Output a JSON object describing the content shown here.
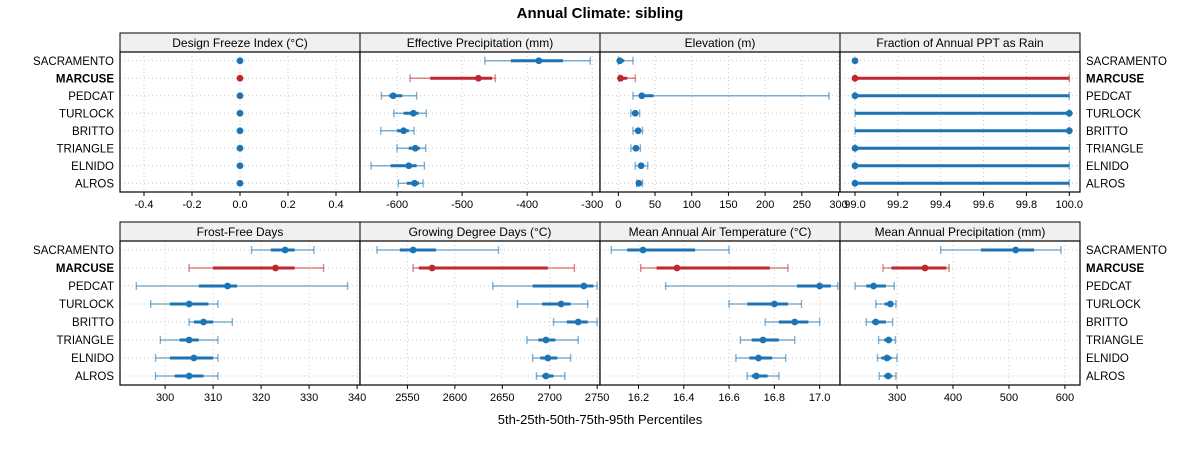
{
  "title": "Annual Climate: sibling",
  "footer": "5th-25th-50th-75th-95th Percentiles",
  "colors": {
    "series": "#1c74b4",
    "highlight": "#c0272d",
    "header_bg": "#f0f0f0",
    "grid": "#c9c9c9",
    "border": "#000000"
  },
  "chart_data": {
    "type": "dotplot",
    "subtype": "percentile-errorbars",
    "percentile_labels": [
      "5th",
      "25th",
      "50th",
      "75th",
      "95th"
    ],
    "stations": [
      "SACRAMENTO",
      "MARCUSE",
      "PEDCAT",
      "TURLOCK",
      "BRITTO",
      "TRIANGLE",
      "ELNIDO",
      "ALROS"
    ],
    "highlight_station": "MARCUSE",
    "legend_position": "none",
    "grid": "dotted",
    "panels": [
      {
        "title": "Design Freeze Index (°C)",
        "row": 0,
        "col": 0,
        "xlim": [
          -0.5,
          0.5
        ],
        "ticks": [
          -0.4,
          -0.2,
          0.0,
          0.2,
          0.4
        ],
        "tick_labels": [
          "-0.4",
          "-0.2",
          "0.0",
          "0.2",
          "0.4"
        ],
        "values": [
          [
            0,
            0,
            0,
            0,
            0
          ],
          [
            0,
            0,
            0,
            0,
            0
          ],
          [
            0,
            0,
            0,
            0,
            0
          ],
          [
            0,
            0,
            0,
            0,
            0
          ],
          [
            0,
            0,
            0,
            0,
            0
          ],
          [
            0,
            0,
            0,
            0,
            0
          ],
          [
            0,
            0,
            0,
            0,
            0
          ],
          [
            0,
            0,
            0,
            0,
            0
          ]
        ]
      },
      {
        "title": "Effective Precipitation (mm)",
        "row": 0,
        "col": 1,
        "xlim": [
          -657,
          -288
        ],
        "ticks": [
          -600,
          -500,
          -400,
          -300
        ],
        "tick_labels": [
          "-600",
          "-500",
          "-400",
          "-300"
        ],
        "values": [
          [
            -465,
            -425,
            -382,
            -345,
            -303
          ],
          [
            -580,
            -549,
            -475,
            -454,
            -449
          ],
          [
            -624,
            -612,
            -606,
            -592,
            -570
          ],
          [
            -605,
            -590,
            -575,
            -567,
            -555
          ],
          [
            -625,
            -600,
            -590,
            -582,
            -574
          ],
          [
            -600,
            -582,
            -572,
            -565,
            -556
          ],
          [
            -640,
            -610,
            -582,
            -570,
            -558
          ],
          [
            -598,
            -585,
            -573,
            -566,
            -560
          ]
        ]
      },
      {
        "title": "Elevation (m)",
        "row": 0,
        "col": 2,
        "xlim": [
          -25,
          302
        ],
        "ticks": [
          0,
          50,
          100,
          150,
          200,
          250,
          300
        ],
        "tick_labels": [
          "0",
          "50",
          "100",
          "150",
          "200",
          "250",
          "300"
        ],
        "values": [
          [
            0,
            1,
            2,
            8,
            20
          ],
          [
            1,
            2,
            3,
            12,
            23
          ],
          [
            20,
            28,
            32,
            48,
            287
          ],
          [
            17,
            21,
            23,
            26,
            29
          ],
          [
            20,
            25,
            27,
            30,
            33
          ],
          [
            17,
            21,
            24,
            27,
            30
          ],
          [
            23,
            28,
            31,
            34,
            40
          ],
          [
            25,
            27,
            28,
            30,
            33
          ]
        ]
      },
      {
        "title": "Fraction of Annual PPT as Rain",
        "row": 0,
        "col": 3,
        "xlim": [
          98.93,
          100.05
        ],
        "ticks": [
          99.0,
          99.2,
          99.4,
          99.6,
          99.8,
          100.0
        ],
        "tick_labels": [
          "99.0",
          "99.2",
          "99.4",
          "99.6",
          "99.8",
          "100.0"
        ],
        "values": [
          [
            99.0,
            99.0,
            99.0,
            99.0,
            99.0
          ],
          [
            99.0,
            99.0,
            99.0,
            100.0,
            100.0
          ],
          [
            99.0,
            99.0,
            99.0,
            100.0,
            100.0
          ],
          [
            99.0,
            99.0,
            100.0,
            100.0,
            100.0
          ],
          [
            99.0,
            99.0,
            100.0,
            100.0,
            100.0
          ],
          [
            99.0,
            99.0,
            99.0,
            100.0,
            100.0
          ],
          [
            99.0,
            99.0,
            99.0,
            100.0,
            100.0
          ],
          [
            99.0,
            99.0,
            99.0,
            100.0,
            100.0
          ]
        ]
      },
      {
        "title": "Frost-Free Days",
        "row": 1,
        "col": 0,
        "xlim": [
          290.6,
          340.6
        ],
        "ticks": [
          300,
          310,
          320,
          330,
          340
        ],
        "tick_labels": [
          "300",
          "310",
          "320",
          "330",
          "340"
        ],
        "values": [
          [
            318,
            322,
            325,
            327,
            331
          ],
          [
            305,
            310,
            323,
            327,
            333
          ],
          [
            294,
            307,
            313,
            315,
            338
          ],
          [
            297,
            301,
            305,
            309,
            311
          ],
          [
            305,
            306,
            308,
            310,
            314
          ],
          [
            299,
            303,
            305,
            307,
            311
          ],
          [
            298,
            301,
            306,
            310,
            311
          ],
          [
            298,
            302,
            305,
            308,
            311
          ]
        ]
      },
      {
        "title": "Growing Degree Days (°C)",
        "row": 1,
        "col": 1,
        "xlim": [
          2500,
          2753
        ],
        "ticks": [
          2550,
          2600,
          2650,
          2700,
          2750
        ],
        "tick_labels": [
          "2550",
          "2600",
          "2650",
          "2700",
          "2750"
        ],
        "values": [
          [
            2518,
            2542,
            2556,
            2580,
            2646
          ],
          [
            2556,
            2562,
            2576,
            2698,
            2726
          ],
          [
            2640,
            2682,
            2736,
            2746,
            2750
          ],
          [
            2666,
            2692,
            2712,
            2722,
            2740
          ],
          [
            2704,
            2718,
            2730,
            2740,
            2750
          ],
          [
            2676,
            2688,
            2696,
            2706,
            2730
          ],
          [
            2682,
            2690,
            2698,
            2708,
            2722
          ],
          [
            2686,
            2692,
            2696,
            2704,
            2716
          ]
        ]
      },
      {
        "title": "Mean Annual Air Temperature (°C)",
        "row": 1,
        "col": 2,
        "xlim": [
          16.03,
          17.09
        ],
        "ticks": [
          16.2,
          16.4,
          16.6,
          16.8,
          17.0
        ],
        "tick_labels": [
          "16.2",
          "16.4",
          "16.6",
          "16.8",
          "17.0"
        ],
        "values": [
          [
            16.08,
            16.15,
            16.22,
            16.45,
            16.6
          ],
          [
            16.21,
            16.28,
            16.37,
            16.78,
            16.86
          ],
          [
            16.32,
            16.9,
            17.0,
            17.05,
            17.08
          ],
          [
            16.6,
            16.68,
            16.8,
            16.86,
            16.92
          ],
          [
            16.76,
            16.82,
            16.89,
            16.95,
            17.0
          ],
          [
            16.65,
            16.7,
            16.75,
            16.82,
            16.89
          ],
          [
            16.63,
            16.69,
            16.73,
            16.79,
            16.85
          ],
          [
            16.68,
            16.7,
            16.72,
            16.77,
            16.82
          ]
        ]
      },
      {
        "title": "Mean Annual Precipitation (mm)",
        "row": 1,
        "col": 3,
        "xlim": [
          198,
          627
        ],
        "ticks": [
          300,
          400,
          500,
          600
        ],
        "tick_labels": [
          "300",
          "400",
          "500",
          "600"
        ],
        "values": [
          [
            378,
            450,
            512,
            545,
            593
          ],
          [
            275,
            290,
            350,
            388,
            393
          ],
          [
            225,
            245,
            258,
            280,
            295
          ],
          [
            262,
            278,
            288,
            293,
            298
          ],
          [
            245,
            255,
            262,
            280,
            292
          ],
          [
            267,
            277,
            285,
            290,
            297
          ],
          [
            265,
            272,
            282,
            290,
            300
          ],
          [
            268,
            277,
            284,
            291,
            298
          ]
        ]
      }
    ]
  }
}
